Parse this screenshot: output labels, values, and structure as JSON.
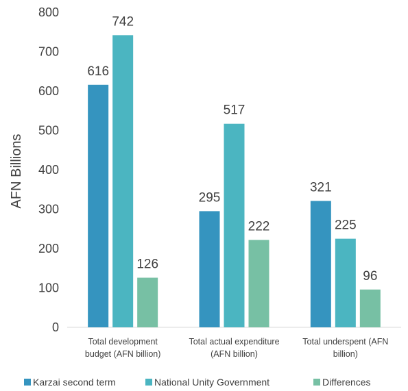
{
  "chart_data": {
    "type": "bar",
    "title": "",
    "xlabel": "",
    "ylabel": "AFN Billions",
    "ylim": [
      0,
      800
    ],
    "yticks": [
      0,
      100,
      200,
      300,
      400,
      500,
      600,
      700,
      800
    ],
    "grid": false,
    "legend_position": "bottom",
    "categories": [
      [
        "Total development",
        "budget (AFN billion)"
      ],
      [
        "Total actual expenditure",
        "(AFN billion)"
      ],
      [
        "Total underspent (AFN",
        "billion)"
      ]
    ],
    "series": [
      {
        "name": "Karzai second term",
        "color": "#3594bf",
        "values": [
          616,
          295,
          321
        ]
      },
      {
        "name": "National Unity Government",
        "color": "#4bb5c1",
        "values": [
          742,
          517,
          225
        ]
      },
      {
        "name": "Differences",
        "color": "#77c0a4",
        "values": [
          126,
          222,
          96
        ]
      }
    ]
  }
}
